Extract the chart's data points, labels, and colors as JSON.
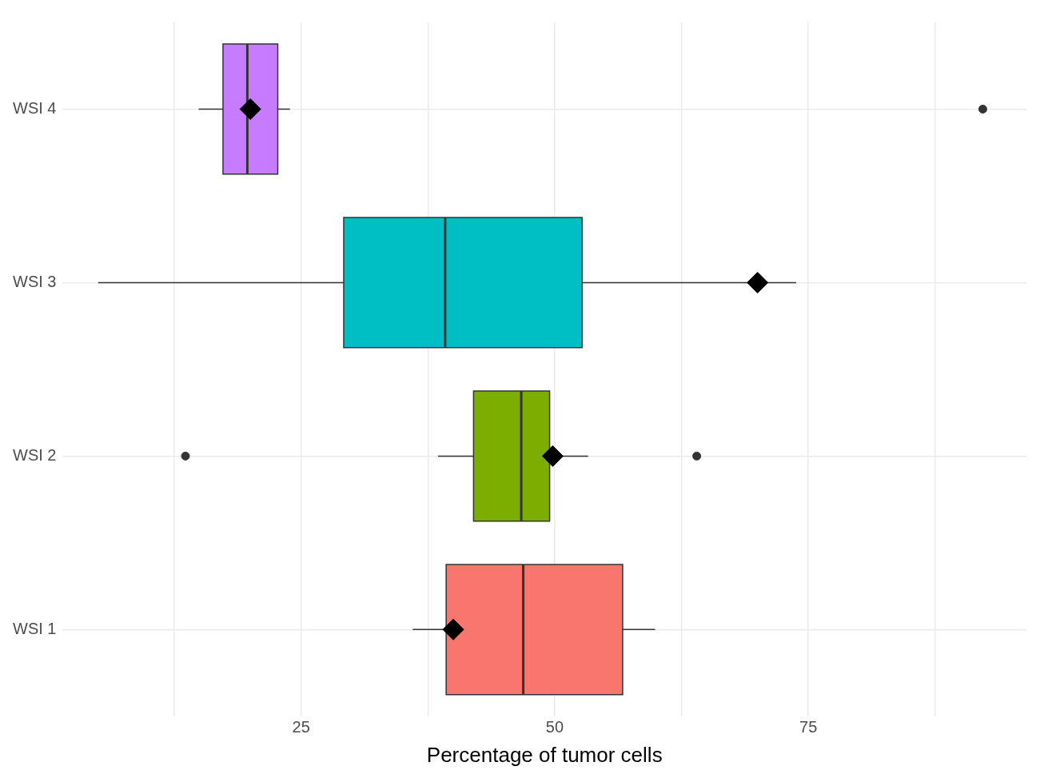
{
  "chart_data": {
    "type": "box",
    "orientation": "horizontal",
    "xlabel": "Percentage of tumor cells",
    "categories": [
      "WSI 4",
      "WSI 3",
      "WSI 2",
      "WSI 1"
    ],
    "colors": [
      "#c77cff",
      "#00bfc4",
      "#7cae00",
      "#f8766d"
    ],
    "boxes": [
      {
        "low": 14.9,
        "q1": 17.3,
        "median": 19.7,
        "q3": 22.7,
        "high": 23.9,
        "mean": 20.0,
        "outliers": [
          92.2
        ]
      },
      {
        "low": 5.0,
        "q1": 29.2,
        "median": 39.2,
        "q3": 52.7,
        "high": 73.8,
        "mean": 70.0
      },
      {
        "low": 38.5,
        "q1": 42.0,
        "median": 46.7,
        "q3": 49.5,
        "high": 53.3,
        "mean": 49.8,
        "outliers": [
          13.6,
          64.0
        ]
      },
      {
        "low": 36.0,
        "q1": 39.3,
        "median": 46.9,
        "q3": 56.7,
        "high": 59.9,
        "mean": 40.0
      }
    ],
    "xlim": [
      1.5,
      96.5
    ],
    "xticks": [
      {
        "value": 12.5,
        "label": null
      },
      25,
      {
        "value": 37.5,
        "label": null
      },
      50,
      {
        "value": 62.5,
        "label": null
      },
      75,
      {
        "value": 87.5,
        "label": null
      }
    ],
    "grid": true,
    "legend": false
  }
}
